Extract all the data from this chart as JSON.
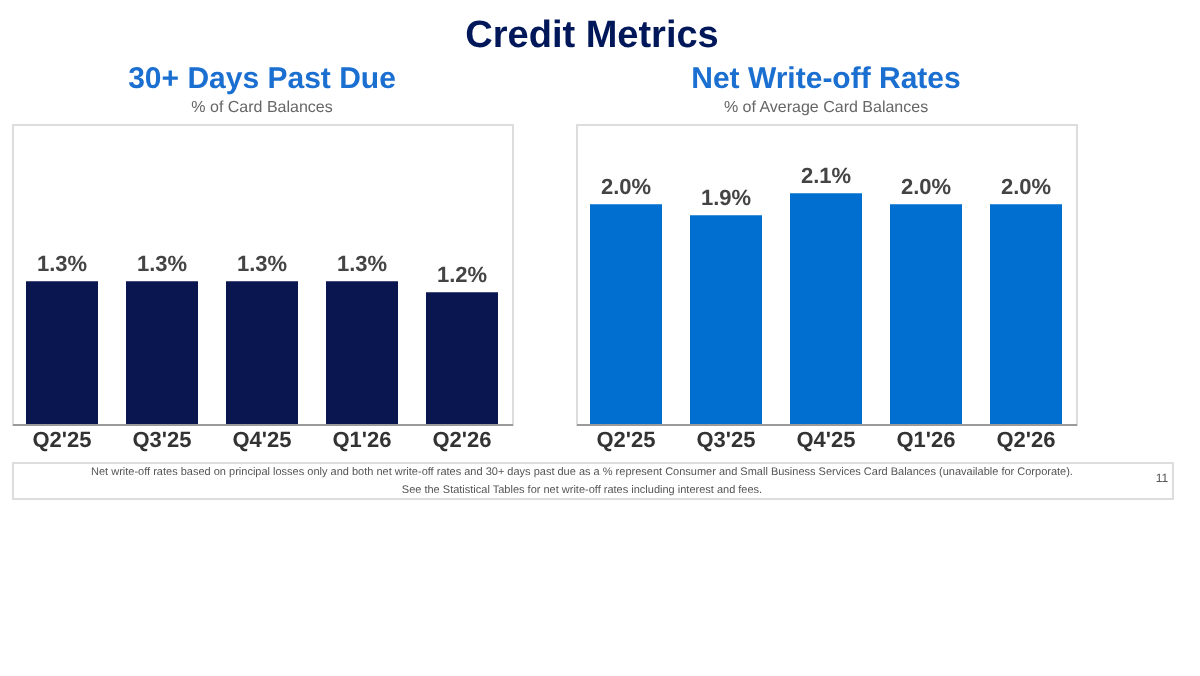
{
  "chart_data": [
    {
      "type": "bar",
      "title": "30+ Days Past Due",
      "subtitle": "% of Card Balances",
      "categories": [
        "Q2'25",
        "Q3'25",
        "Q4'25",
        "Q1'26",
        "Q2'26"
      ],
      "values": [
        1.3,
        1.3,
        1.3,
        1.3,
        1.2
      ],
      "value_labels": [
        "1.3%",
        "1.3%",
        "1.3%",
        "1.3%",
        "1.2%"
      ],
      "color": "#0a1650",
      "tick_labels": "x",
      "annotations": [
        "Credit Metrics"
      ]
    },
    {
      "type": "bar",
      "title": "Net Write-off Rates",
      "subtitle": "% of Average Card Balances",
      "categories": [
        "Q2'25",
        "Q3'25",
        "Q4'25",
        "Q1'26",
        "Q2'26"
      ],
      "values": [
        2.0,
        1.9,
        2.1,
        2.0,
        2.0
      ],
      "value_labels": [
        "2.0%",
        "1.9%",
        "2.1%",
        "2.0%",
        "2.0%"
      ],
      "color": "#006fcf",
      "tick_labels": "x",
      "annotations": [
        "Net write-off rates based on principal losses only and both net write-off rates and 30+ days past due as a % represent Consumer and Small Business Services Card Balances (unavailable for Corporate).",
        "See the Statistical Tables for net write-off rates including interest and fees.",
        "11"
      ]
    }
  ]
}
